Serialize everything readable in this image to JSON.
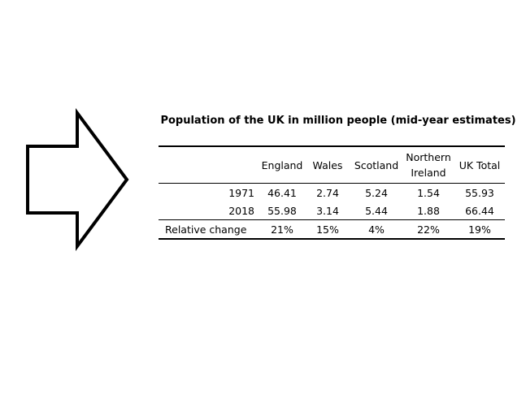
{
  "document": {
    "title": "Population of the UK in million people (mid-year estimates)",
    "arrow_icon": "right-arrow-outline-icon",
    "table": {
      "columns": [
        "England",
        "Wales",
        "Scotland",
        "Northern Ireland",
        "UK Total"
      ],
      "rows": [
        {
          "label": "1971",
          "values": [
            "46.41",
            "2.74",
            "5.24",
            "1.54",
            "55.93"
          ]
        },
        {
          "label": "2018",
          "values": [
            "55.98",
            "3.14",
            "5.44",
            "1.88",
            "66.44"
          ]
        },
        {
          "label": "Relative change",
          "values": [
            "21%",
            "15%",
            "4%",
            "22%",
            "19%"
          ]
        }
      ]
    }
  }
}
